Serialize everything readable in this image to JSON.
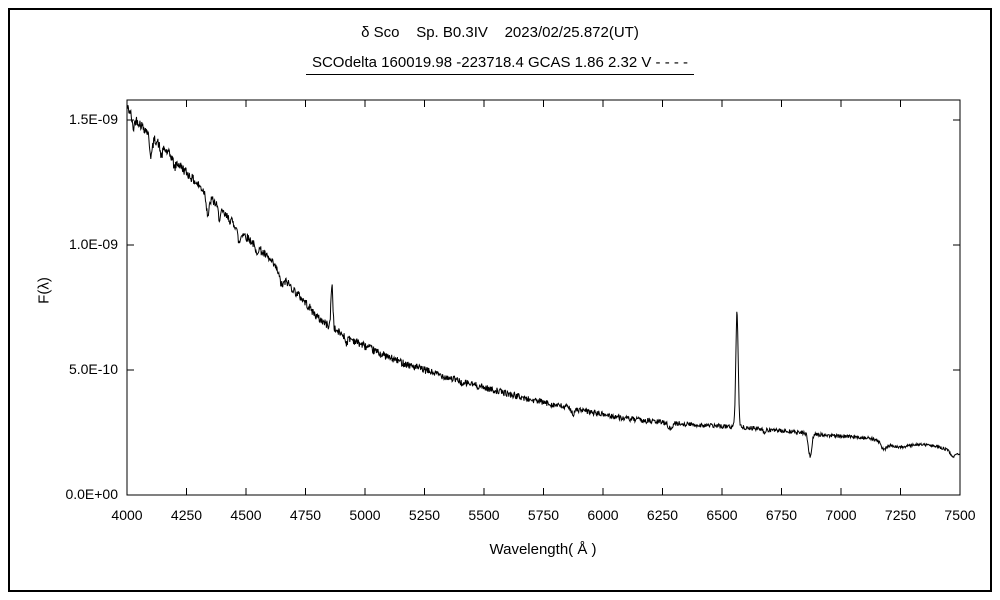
{
  "chart_data": {
    "type": "line",
    "title": "δ Sco    Sp. B0.3IV    2023/02/25.872(UT)",
    "subtitle": "SCOdelta 160019.98 -223718.4 GCAS 1.86 2.32 V - - - -",
    "xlabel": "Wavelength( Å )",
    "ylabel": "F(λ)",
    "xlim": [
      4000,
      7500
    ],
    "ylim": [
      0,
      1.58e-09
    ],
    "x_ticks": [
      4000,
      4250,
      4500,
      4750,
      5000,
      5250,
      5500,
      5750,
      6000,
      6250,
      6500,
      6750,
      7000,
      7250,
      7500
    ],
    "y_ticks": [
      {
        "value": 0,
        "label": "0.0E+00"
      },
      {
        "value": 5e-10,
        "label": "5.0E-10"
      },
      {
        "value": 1e-09,
        "label": "1.0E-09"
      },
      {
        "value": 1.5e-09,
        "label": "1.5E-09"
      }
    ],
    "flux_scale": 1e-10,
    "line_color": "#000000",
    "grid": false,
    "legend": "none",
    "continuum": [
      [
        4000,
        15.5
      ],
      [
        4040,
        15.0
      ],
      [
        4080,
        14.6
      ],
      [
        4120,
        14.2
      ],
      [
        4160,
        13.8
      ],
      [
        4200,
        13.4
      ],
      [
        4250,
        12.9
      ],
      [
        4300,
        12.4
      ],
      [
        4350,
        11.9
      ],
      [
        4400,
        11.3
      ],
      [
        4450,
        10.85
      ],
      [
        4500,
        10.35
      ],
      [
        4550,
        9.9
      ],
      [
        4600,
        9.4
      ],
      [
        4650,
        8.8
      ],
      [
        4700,
        8.2
      ],
      [
        4750,
        7.7
      ],
      [
        4800,
        7.1
      ],
      [
        4850,
        6.75
      ],
      [
        4900,
        6.45
      ],
      [
        4950,
        6.2
      ],
      [
        5000,
        5.95
      ],
      [
        5100,
        5.5
      ],
      [
        5200,
        5.15
      ],
      [
        5300,
        4.85
      ],
      [
        5400,
        4.55
      ],
      [
        5500,
        4.3
      ],
      [
        5600,
        4.05
      ],
      [
        5700,
        3.8
      ],
      [
        5800,
        3.6
      ],
      [
        5900,
        3.4
      ],
      [
        6000,
        3.22
      ],
      [
        6100,
        3.05
      ],
      [
        6200,
        2.95
      ],
      [
        6300,
        2.87
      ],
      [
        6400,
        2.8
      ],
      [
        6500,
        2.75
      ],
      [
        6600,
        2.7
      ],
      [
        6700,
        2.6
      ],
      [
        6800,
        2.53
      ],
      [
        6900,
        2.42
      ],
      [
        7000,
        2.35
      ],
      [
        7100,
        2.3
      ],
      [
        7200,
        2.25
      ],
      [
        7300,
        2.15
      ],
      [
        7400,
        1.95
      ],
      [
        7500,
        1.65
      ]
    ],
    "features": [
      {
        "center": 4026,
        "amplitude": -0.5,
        "sigma": 5
      },
      {
        "center": 4101,
        "amplitude": -0.8,
        "sigma": 6
      },
      {
        "center": 4144,
        "amplitude": -0.4,
        "sigma": 5
      },
      {
        "center": 4200,
        "amplitude": -0.3,
        "sigma": 5
      },
      {
        "center": 4340,
        "amplitude": -0.8,
        "sigma": 6
      },
      {
        "center": 4388,
        "amplitude": -0.35,
        "sigma": 5
      },
      {
        "center": 4471,
        "amplitude": -0.55,
        "sigma": 6
      },
      {
        "center": 4542,
        "amplitude": -0.3,
        "sigma": 5
      },
      {
        "center": 4650,
        "amplitude": -0.4,
        "sigma": 9
      },
      {
        "center": 4861,
        "amplitude": 1.75,
        "sigma": 4
      },
      {
        "center": 4922,
        "amplitude": -0.25,
        "sigma": 5
      },
      {
        "center": 5412,
        "amplitude": -0.15,
        "sigma": 5
      },
      {
        "center": 5876,
        "amplitude": -0.22,
        "sigma": 6
      },
      {
        "center": 6283,
        "amplitude": -0.25,
        "sigma": 8
      },
      {
        "center": 6563,
        "amplitude": 4.65,
        "sigma": 5
      },
      {
        "center": 6678,
        "amplitude": -0.15,
        "sigma": 5
      },
      {
        "center": 6870,
        "amplitude": -0.9,
        "sigma": 7
      },
      {
        "center": 7180,
        "amplitude": -0.28,
        "sigma": 12
      },
      {
        "center": 7240,
        "amplitude": -0.28,
        "sigma": 55
      },
      {
        "center": 7470,
        "amplitude": -0.2,
        "sigma": 10
      }
    ],
    "noise": {
      "amp_at_4000": 0.2,
      "amp_at_7500": 0.05,
      "seed": 42
    }
  }
}
